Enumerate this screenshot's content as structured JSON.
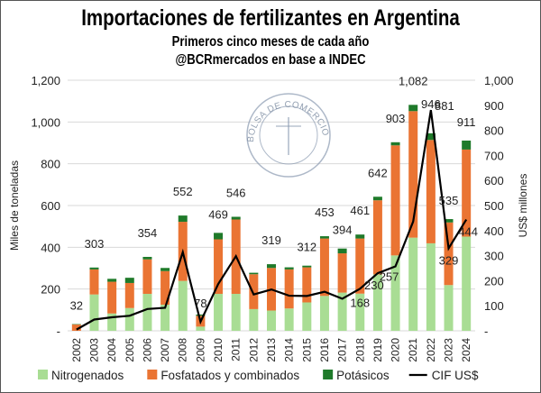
{
  "chart_data": {
    "type": "bar",
    "stacked": true,
    "title": "Importaciones de fertilizantes en Argentina",
    "subtitle": [
      "Primeros cinco meses de cada año",
      "@BCRmercados en base a INDEC"
    ],
    "watermark": "BOLSA DE COMERCIO DE ROSARIO",
    "ylabel": "Miles de toneladas",
    "y2label": "US$ millones",
    "ylim": [
      0,
      1200
    ],
    "y2lim": [
      0,
      1000
    ],
    "yticks": [
      "-",
      "200",
      "400",
      "600",
      "800",
      "1,000",
      "1,200"
    ],
    "y2ticks": [
      "-",
      "100",
      "200",
      "300",
      "400",
      "500",
      "600",
      "700",
      "800",
      "900",
      "1,000"
    ],
    "grid": true,
    "legend_position": "bottom",
    "categories": [
      "2002",
      "2003",
      "2004",
      "2005",
      "2006",
      "2007",
      "2008",
      "2009",
      "2010",
      "2011",
      "2012",
      "2013",
      "2014",
      "2015",
      "2016",
      "2017",
      "2018",
      "2019",
      "2020",
      "2021",
      "2022",
      "2023",
      "2024"
    ],
    "series": [
      {
        "name": "Nitrogenados",
        "type": "bar",
        "axis": "left",
        "color": "#a9dd94",
        "values": [
          0,
          174,
          83,
          109,
          177,
          125,
          239,
          20,
          177,
          177,
          104,
          97,
          107,
          136,
          167,
          183,
          178,
          270,
          361,
          446,
          419,
          219,
          451
        ]
      },
      {
        "name": "Fosfatados y combinados",
        "type": "bar",
        "axis": "left",
        "color": "#ea7433",
        "values": [
          30,
          120,
          152,
          120,
          165,
          161,
          283,
          52,
          261,
          356,
          167,
          204,
          187,
          168,
          275,
          188,
          264,
          355,
          527,
          606,
          495,
          300,
          417
        ]
      },
      {
        "name": "Potásicos",
        "type": "bar",
        "axis": "left",
        "color": "#1f7a2a",
        "values": [
          2,
          9,
          14,
          25,
          12,
          15,
          30,
          6,
          31,
          13,
          7,
          18,
          10,
          8,
          11,
          23,
          19,
          17,
          15,
          30,
          32,
          16,
          43
        ]
      },
      {
        "name": "CIF US$",
        "type": "line",
        "axis": "right",
        "color": "#000000",
        "values": [
          5,
          45,
          54,
          60,
          87,
          92,
          314,
          36,
          187,
          298,
          145,
          165,
          140,
          139,
          156,
          128,
          168,
          230,
          257,
          436,
          881,
          329,
          444
        ]
      }
    ],
    "total_labels": [
      {
        "category": "2002",
        "text": "32"
      },
      {
        "category": "2003",
        "text": "303"
      },
      {
        "category": "2006",
        "text": "354"
      },
      {
        "category": "2008",
        "text": "552"
      },
      {
        "category": "2009",
        "text": "78"
      },
      {
        "category": "2010",
        "text": "469"
      },
      {
        "category": "2011",
        "text": "546"
      },
      {
        "category": "2013",
        "text": "319"
      },
      {
        "category": "2015",
        "text": "312"
      },
      {
        "category": "2016",
        "text": "453"
      },
      {
        "category": "2017",
        "text": "394"
      },
      {
        "category": "2018",
        "text": "461"
      },
      {
        "category": "2019",
        "text": "642"
      },
      {
        "category": "2020",
        "text": "903"
      },
      {
        "category": "2021",
        "text": "1,082"
      },
      {
        "category": "2022",
        "text": "946"
      },
      {
        "category": "2023",
        "text": "535"
      },
      {
        "category": "2024",
        "text": "911"
      }
    ],
    "line_labels": [
      {
        "category": "2018",
        "text": "168"
      },
      {
        "category": "2019",
        "text": "230"
      },
      {
        "category": "2020",
        "text": "257"
      },
      {
        "category": "2022",
        "text": "881"
      },
      {
        "category": "2023",
        "text": "329"
      },
      {
        "category": "2024",
        "text": "444"
      }
    ]
  }
}
